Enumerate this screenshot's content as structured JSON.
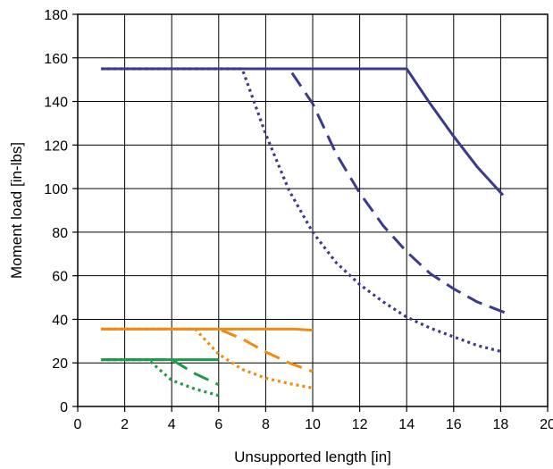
{
  "chart_data": {
    "type": "line",
    "title": "",
    "xlabel": "Unsupported length [in]",
    "ylabel": "Moment load [in-lbs]",
    "xlim": [
      0,
      20
    ],
    "ylim": [
      0,
      180
    ],
    "x_ticks": [
      0,
      2,
      4,
      6,
      8,
      10,
      12,
      14,
      16,
      18,
      20
    ],
    "y_ticks": [
      0,
      20,
      40,
      60,
      80,
      100,
      120,
      140,
      160,
      180
    ],
    "grid": true,
    "legend": "none",
    "series": [
      {
        "color": "#3b3a8c",
        "style": "solid",
        "x": [
          1,
          14,
          15,
          16,
          17,
          18.1
        ],
        "y": [
          155,
          155,
          139,
          124,
          110,
          97
        ]
      },
      {
        "color": "#3b3a8c",
        "style": "dashed",
        "x": [
          1,
          9,
          10,
          11,
          12,
          13,
          14,
          15,
          16,
          17,
          18.2
        ],
        "y": [
          155,
          155,
          139,
          116,
          98,
          83,
          71,
          61,
          54,
          48,
          43
        ]
      },
      {
        "color": "#3b3a8c",
        "style": "dotted",
        "x": [
          1,
          7,
          8,
          9,
          10,
          11,
          12,
          13,
          14,
          15,
          16,
          17,
          18.1
        ],
        "y": [
          155,
          155,
          125,
          99,
          80,
          66,
          56,
          48,
          41,
          36,
          32,
          28,
          25
        ]
      },
      {
        "color": "#f08a14",
        "style": "solid",
        "x": [
          1,
          9.2,
          10
        ],
        "y": [
          35.5,
          35.5,
          35
        ]
      },
      {
        "color": "#f08a14",
        "style": "dashed",
        "x": [
          1,
          6,
          7,
          8,
          9,
          10
        ],
        "y": [
          35.5,
          35.5,
          31,
          25,
          20,
          16
        ]
      },
      {
        "color": "#f08a14",
        "style": "dotted",
        "x": [
          1,
          5,
          6,
          7,
          8,
          9,
          10
        ],
        "y": [
          35.5,
          35.5,
          24,
          17,
          13,
          10.5,
          8.5
        ]
      },
      {
        "color": "#1f9a48",
        "style": "solid",
        "x": [
          1,
          6
        ],
        "y": [
          21.5,
          21.5
        ]
      },
      {
        "color": "#1f9a48",
        "style": "dashed",
        "x": [
          1,
          4,
          5,
          6
        ],
        "y": [
          21.5,
          21.5,
          15,
          10
        ]
      },
      {
        "color": "#1f9a48",
        "style": "dotted",
        "x": [
          1,
          3,
          4,
          5,
          6
        ],
        "y": [
          21.5,
          21.5,
          12,
          8,
          5
        ]
      }
    ]
  }
}
